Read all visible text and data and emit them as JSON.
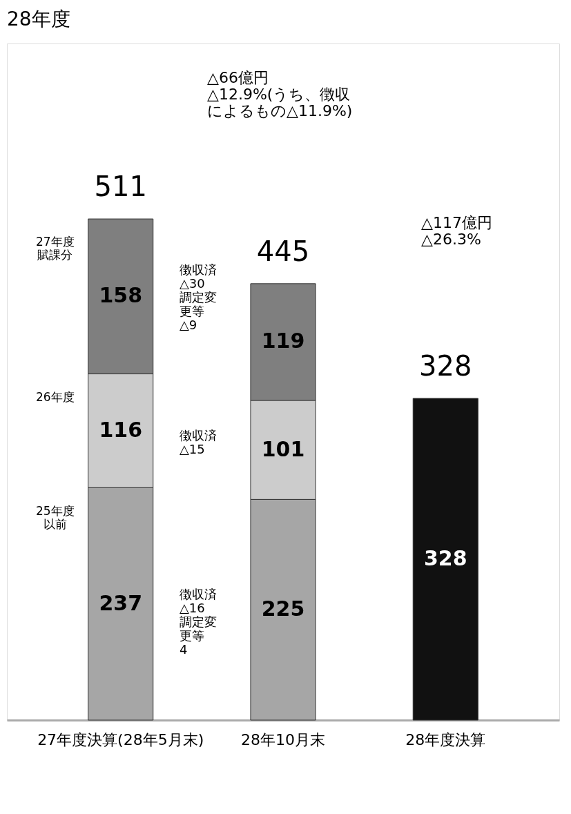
{
  "chart_data": {
    "type": "bar",
    "title": "28年度",
    "stacked": true,
    "data_labels": true,
    "legend": false,
    "grid": false,
    "categories": [
      "27年度決算(28年5月末)",
      "28年10月末",
      "28年度決算"
    ],
    "series": [
      {
        "name": "25年度以前",
        "color": "#a6a6a6",
        "values": [
          237,
          225,
          null
        ]
      },
      {
        "name": "26年度",
        "color": "#cccccc",
        "values": [
          116,
          101,
          null
        ]
      },
      {
        "name": "27年度賦課分",
        "color": "#7f7f7f",
        "values": [
          158,
          119,
          null
        ]
      },
      {
        "color": "#111111",
        "values": [
          null,
          null,
          328
        ]
      }
    ],
    "totals": [
      "511",
      "445",
      "328"
    ],
    "annotations": [
      "△66億円△12.9%(うち、徴収によるもの△11.9%)",
      "△117億円△26.3%",
      "徴収済△30調定変更等△9",
      "徴収済△15",
      "徴収済△16調定変更等4"
    ]
  }
}
